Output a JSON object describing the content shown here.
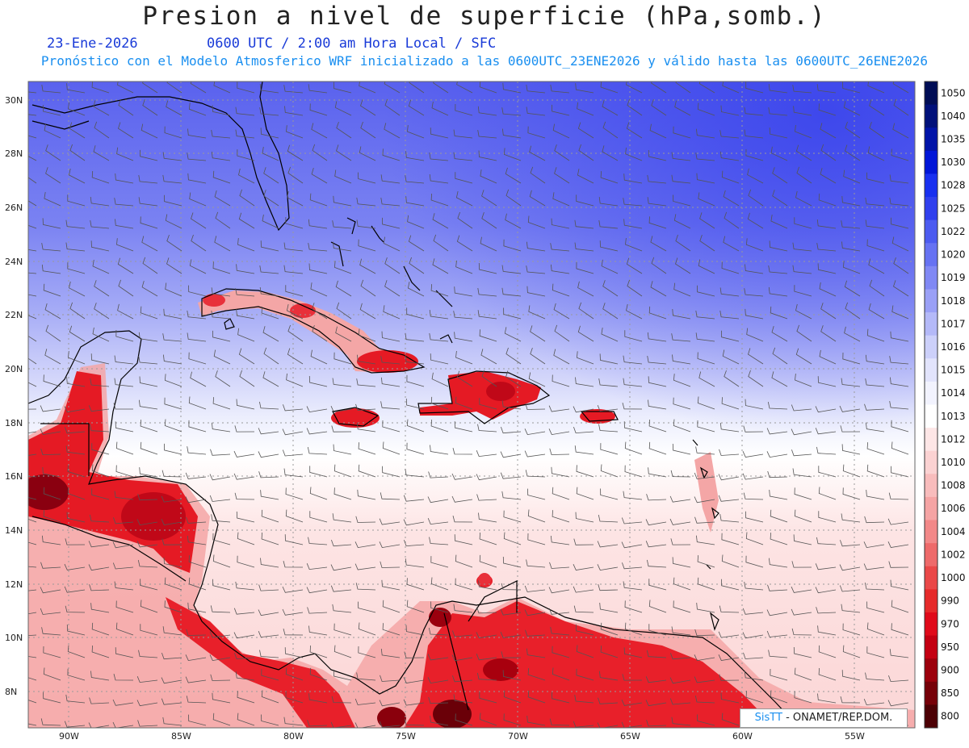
{
  "header": {
    "title": "Presion a nivel de superficie (hPa,somb.)",
    "date": "23-Ene-2026",
    "time_info": "0600 UTC / 2:00 am Hora Local / SFC",
    "subtitle": "Pronóstico con el Modelo Atmosferico WRF inicializado a las 0600UTC_23ENE2026 y válido hasta las  0600UTC_26ENE2026"
  },
  "map": {
    "lat_labels": [
      "30N",
      "28N",
      "26N",
      "24N",
      "22N",
      "20N",
      "18N",
      "16N",
      "14N",
      "12N",
      "10N",
      "8N"
    ],
    "lon_labels": [
      "90W",
      "85W",
      "80W",
      "75W",
      "70W",
      "65W",
      "60W",
      "55W"
    ],
    "low_pressure_color": "#e8001a",
    "high_pressure_color": "#3344ee"
  },
  "colorbar": {
    "levels": [
      "1050",
      "1040",
      "1035",
      "1030",
      "1028",
      "1025",
      "1022",
      "1020",
      "1019",
      "1018",
      "1017",
      "1016",
      "1015",
      "1014",
      "1013",
      "1012",
      "1010",
      "1008",
      "1006",
      "1004",
      "1002",
      "1000",
      "990",
      "970",
      "950",
      "900",
      "850",
      "800"
    ],
    "colors": [
      "#000d55",
      "#00107a",
      "#0013a8",
      "#0016d8",
      "#1830f0",
      "#3040ee",
      "#4c5bf0",
      "#6672f2",
      "#8088f4",
      "#9aa0f6",
      "#b4b9f8",
      "#ccd0fa",
      "#e2e4fc",
      "#f2f3fe",
      "#ffffff",
      "#fde6e6",
      "#fbd2d2",
      "#f8bcbc",
      "#f5a4a4",
      "#f28888",
      "#ee6a6a",
      "#ea4848",
      "#e62a2a",
      "#e00a1a",
      "#c40012",
      "#9c000c",
      "#760008",
      "#4c0004"
    ]
  },
  "credit": {
    "brand": "SisTT",
    "text": " - ONAMET/REP.DOM."
  }
}
